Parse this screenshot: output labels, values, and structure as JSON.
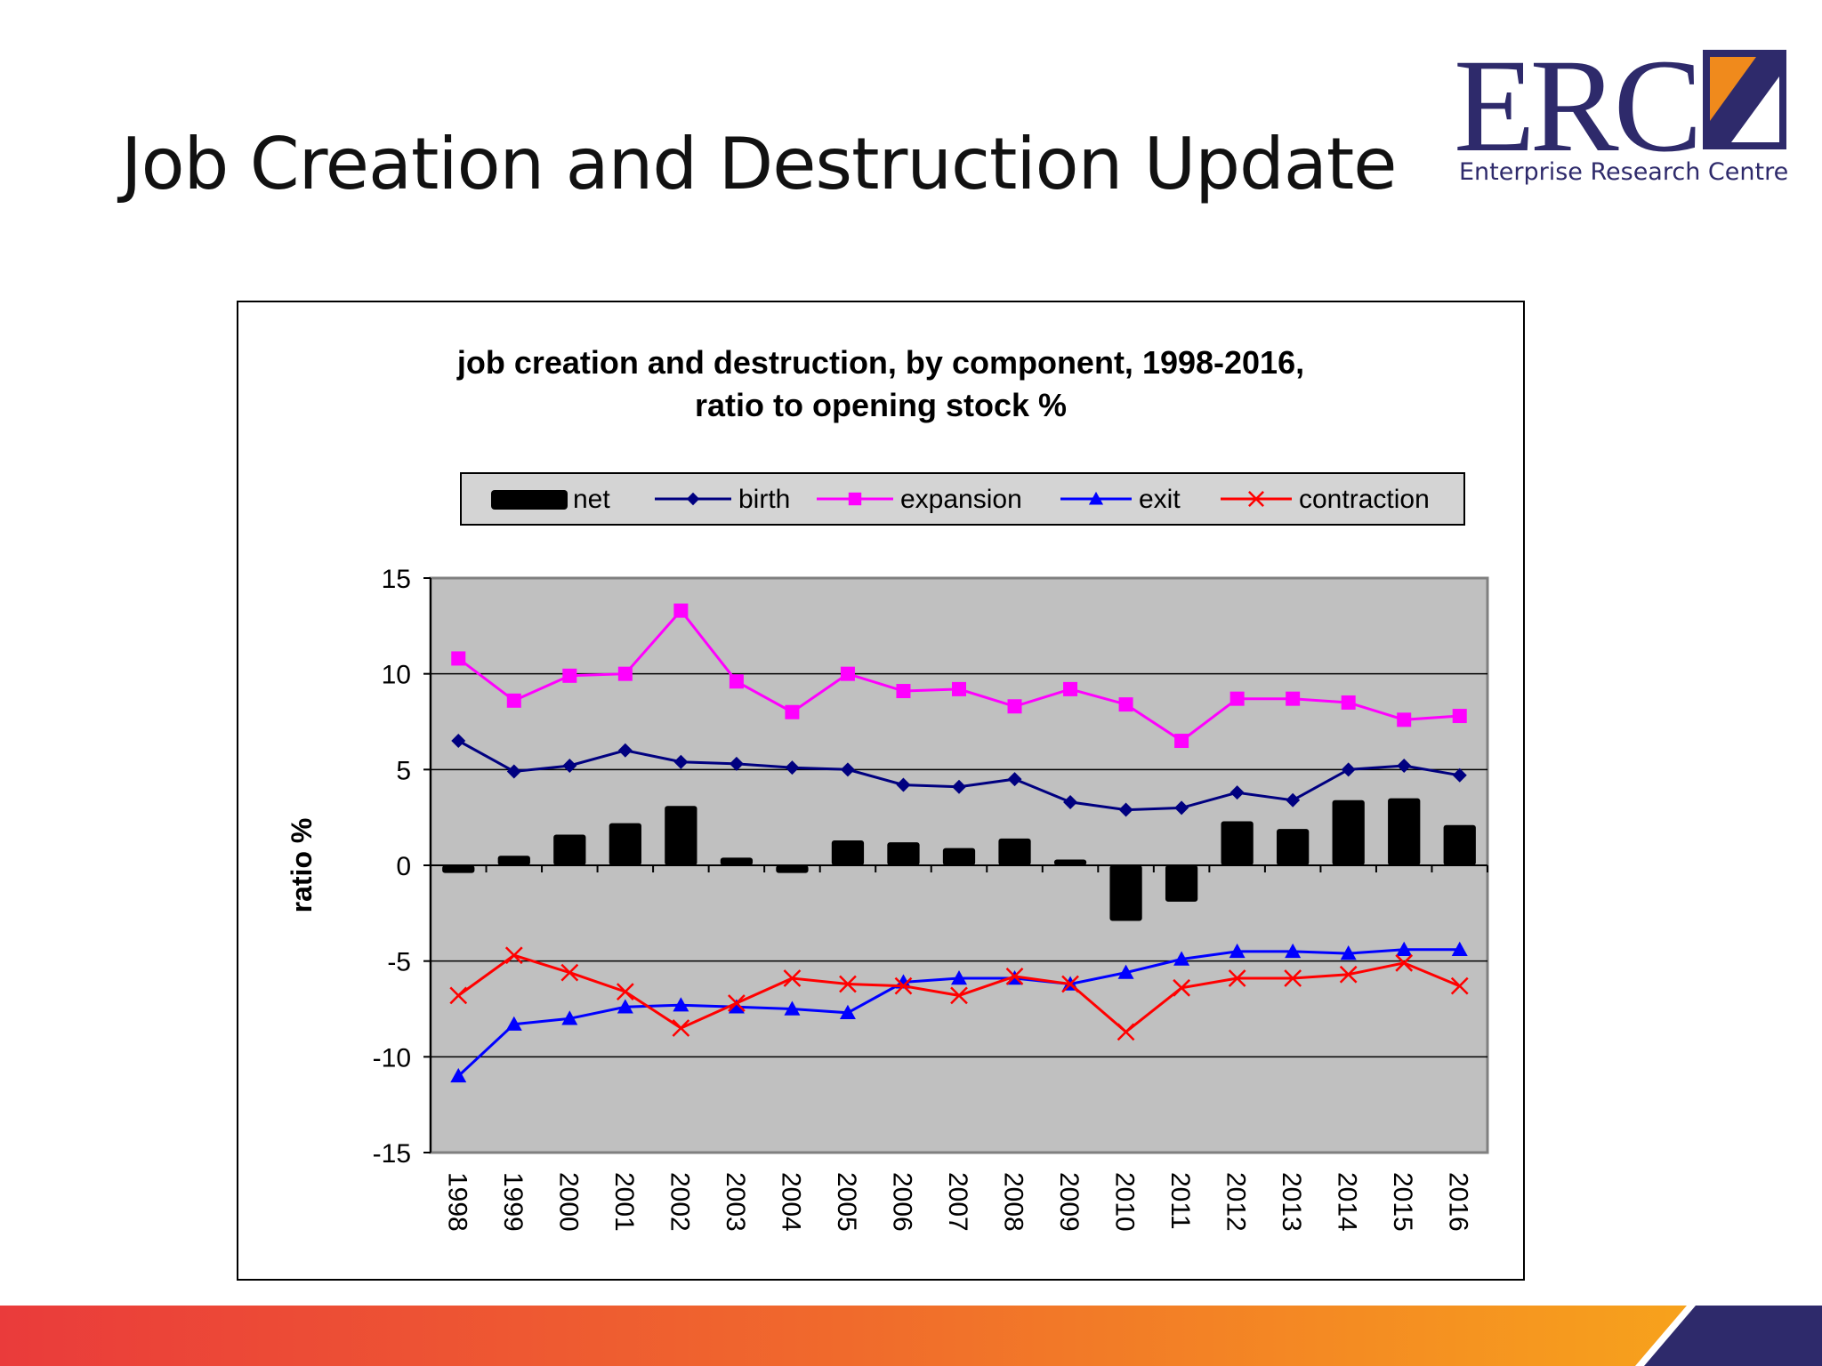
{
  "slide": {
    "title": "Job Creation and Destruction Update"
  },
  "logo": {
    "letters": "ERC",
    "subtitle": "Enterprise Research Centre",
    "color": "#2e2a6b",
    "accent": "#f08a1c"
  },
  "chart_data": {
    "type": "bar",
    "title_lines": [
      "job creation and destruction, by component, 1998-2016,",
      "ratio to opening stock %"
    ],
    "xlabel": "",
    "ylabel": "ratio %",
    "ylim": [
      -15,
      15
    ],
    "yticks": [
      15,
      10,
      5,
      0,
      -5,
      -10,
      -15
    ],
    "grid": true,
    "legend_position": "top",
    "categories": [
      "1998",
      "1999",
      "2000",
      "2001",
      "2002",
      "2003",
      "2004",
      "2005",
      "2006",
      "2007",
      "2008",
      "2009",
      "2010",
      "2011",
      "2012",
      "2013",
      "2014",
      "2015",
      "2016"
    ],
    "series": [
      {
        "name": "net",
        "type": "bar",
        "color": "#000000",
        "values": [
          -0.4,
          0.5,
          1.6,
          2.2,
          3.1,
          0.4,
          -0.4,
          1.3,
          1.2,
          0.9,
          1.4,
          0.3,
          -2.9,
          -1.9,
          2.3,
          1.9,
          3.4,
          3.5,
          2.1
        ]
      },
      {
        "name": "birth",
        "type": "line",
        "marker": "diamond",
        "color": "#000080",
        "values": [
          6.5,
          4.9,
          5.2,
          6.0,
          5.4,
          5.3,
          5.1,
          5.0,
          4.2,
          4.1,
          4.5,
          3.3,
          2.9,
          3.0,
          3.8,
          3.4,
          5.0,
          5.2,
          4.7
        ]
      },
      {
        "name": "expansion",
        "type": "line",
        "marker": "square",
        "color": "#ff00ff",
        "values": [
          10.8,
          8.6,
          9.9,
          10.0,
          13.3,
          9.6,
          8.0,
          10.0,
          9.1,
          9.2,
          8.3,
          9.2,
          8.4,
          6.5,
          8.7,
          8.7,
          8.5,
          7.6,
          7.8
        ]
      },
      {
        "name": "exit",
        "type": "line",
        "marker": "triangle",
        "color": "#0000ff",
        "values": [
          -11.0,
          -8.3,
          -8.0,
          -7.4,
          -7.3,
          -7.4,
          -7.5,
          -7.7,
          -6.1,
          -5.9,
          -5.9,
          -6.2,
          -5.6,
          -4.9,
          -4.5,
          -4.5,
          -4.6,
          -4.4,
          -4.4
        ]
      },
      {
        "name": "contraction",
        "type": "line",
        "marker": "x",
        "color": "#ff0000",
        "values": [
          -6.8,
          -4.7,
          -5.6,
          -6.6,
          -8.5,
          -7.2,
          -5.9,
          -6.2,
          -6.3,
          -6.8,
          -5.8,
          -6.2,
          -8.7,
          -6.4,
          -5.9,
          -5.9,
          -5.7,
          -5.1,
          -6.3
        ]
      }
    ],
    "plot_bg": "#c0c0c0"
  }
}
